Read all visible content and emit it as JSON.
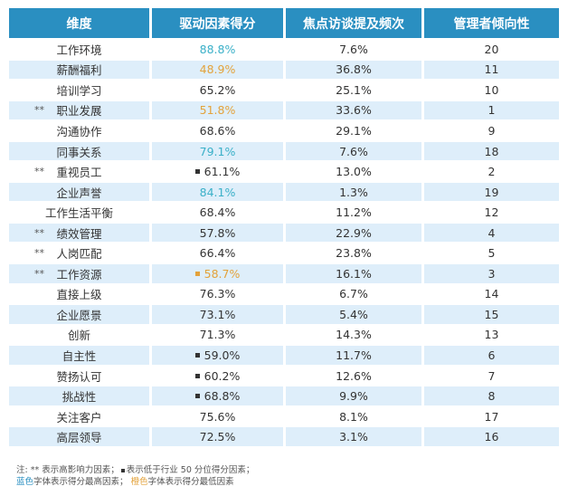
{
  "header": {
    "col1": "维度",
    "col2": "驱动因素得分",
    "col3": "焦点访谈提及频次",
    "col4": "管理者倾向性"
  },
  "colors": {
    "header_bg": "#2a8fc1",
    "alt_row_bg": "#deeefa",
    "highest": "#3ab0c8",
    "lowest": "#e3a23b"
  },
  "rows": [
    {
      "dim": "工作环境",
      "stars": "",
      "square": "",
      "score": "88.8%",
      "score_color": "blue",
      "freq": "7.6%",
      "rank": "20"
    },
    {
      "dim": "薪酬福利",
      "stars": "",
      "square": "",
      "score": "48.9%",
      "score_color": "orange",
      "freq": "36.8%",
      "rank": "11"
    },
    {
      "dim": "培训学习",
      "stars": "",
      "square": "",
      "score": "65.2%",
      "score_color": "",
      "freq": "25.1%",
      "rank": "10"
    },
    {
      "dim": "职业发展",
      "stars": "**",
      "square": "",
      "score": "51.8%",
      "score_color": "orange",
      "freq": "33.6%",
      "rank": "1"
    },
    {
      "dim": "沟通协作",
      "stars": "",
      "square": "",
      "score": "68.6%",
      "score_color": "",
      "freq": "29.1%",
      "rank": "9"
    },
    {
      "dim": "同事关系",
      "stars": "",
      "square": "",
      "score": "79.1%",
      "score_color": "blue",
      "freq": "7.6%",
      "rank": "18"
    },
    {
      "dim": "重视员工",
      "stars": "**",
      "square": "black",
      "score": "61.1%",
      "score_color": "",
      "freq": "13.0%",
      "rank": "2"
    },
    {
      "dim": "企业声誉",
      "stars": "",
      "square": "",
      "score": "84.1%",
      "score_color": "blue",
      "freq": "1.3%",
      "rank": "19"
    },
    {
      "dim": "工作生活平衡",
      "stars": "",
      "square": "",
      "score": "68.4%",
      "score_color": "",
      "freq": "11.2%",
      "rank": "12"
    },
    {
      "dim": "绩效管理",
      "stars": "**",
      "square": "",
      "score": "57.8%",
      "score_color": "",
      "freq": "22.9%",
      "rank": "4"
    },
    {
      "dim": "人岗匹配",
      "stars": "**",
      "square": "",
      "score": "66.4%",
      "score_color": "",
      "freq": "23.8%",
      "rank": "5"
    },
    {
      "dim": "工作资源",
      "stars": "**",
      "square": "orange",
      "score": "58.7%",
      "score_color": "orange",
      "freq": "16.1%",
      "rank": "3"
    },
    {
      "dim": "直接上级",
      "stars": "",
      "square": "",
      "score": "76.3%",
      "score_color": "",
      "freq": "6.7%",
      "rank": "14"
    },
    {
      "dim": "企业愿景",
      "stars": "",
      "square": "",
      "score": "73.1%",
      "score_color": "",
      "freq": "5.4%",
      "rank": "15"
    },
    {
      "dim": "创新",
      "stars": "",
      "square": "",
      "score": "71.3%",
      "score_color": "",
      "freq": "14.3%",
      "rank": "13"
    },
    {
      "dim": "自主性",
      "stars": "",
      "square": "black",
      "score": "59.0%",
      "score_color": "",
      "freq": "11.7%",
      "rank": "6"
    },
    {
      "dim": "赞扬认可",
      "stars": "",
      "square": "black",
      "score": "60.2%",
      "score_color": "",
      "freq": "12.6%",
      "rank": "7"
    },
    {
      "dim": "挑战性",
      "stars": "",
      "square": "black",
      "score": "68.8%",
      "score_color": "",
      "freq": "9.9%",
      "rank": "8"
    },
    {
      "dim": "关注客户",
      "stars": "",
      "square": "",
      "score": "75.6%",
      "score_color": "",
      "freq": "8.1%",
      "rank": "17"
    },
    {
      "dim": "高层领导",
      "stars": "",
      "square": "",
      "score": "72.5%",
      "score_color": "",
      "freq": "3.1%",
      "rank": "16"
    }
  ],
  "note": {
    "prefix": "注:",
    "stars": "**",
    "part1": "表示高影响力因素；",
    "part2": "表示低于行业 50 分位得分因素；",
    "blue_word": "蓝色",
    "part3": "字体表示得分最高因素；",
    "orange_word": "橙色",
    "part4": "字体表示得分最低因素"
  }
}
